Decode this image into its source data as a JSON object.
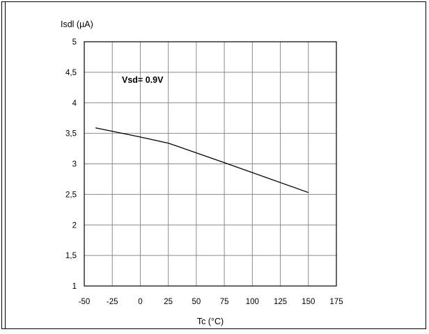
{
  "chart_data": {
    "type": "line",
    "title": "",
    "xlabel": "Tc (°C)",
    "ylabel": "Isdl (µA)",
    "xlim": [
      -50,
      175
    ],
    "ylim": [
      1,
      5
    ],
    "grid": true,
    "x_ticks": [
      -50,
      -25,
      0,
      25,
      50,
      75,
      100,
      125,
      150,
      175
    ],
    "x_tick_labels": [
      "-50",
      "-25",
      "0",
      "25",
      "50",
      "75",
      "100",
      "125",
      "150",
      "175"
    ],
    "y_ticks": [
      1,
      1.5,
      2,
      2.5,
      3,
      3.5,
      4,
      4.5,
      5
    ],
    "y_tick_labels": [
      "1",
      "1,5",
      "2",
      "2,5",
      "3",
      "3,5",
      "4",
      "4,5",
      "5"
    ],
    "annotation": "Vsd= 0.9V",
    "series": [
      {
        "color": "#000000",
        "x": [
          -40,
          0,
          25,
          75,
          150
        ],
        "y": [
          3.59,
          3.44,
          3.34,
          3.02,
          2.53
        ]
      }
    ]
  }
}
